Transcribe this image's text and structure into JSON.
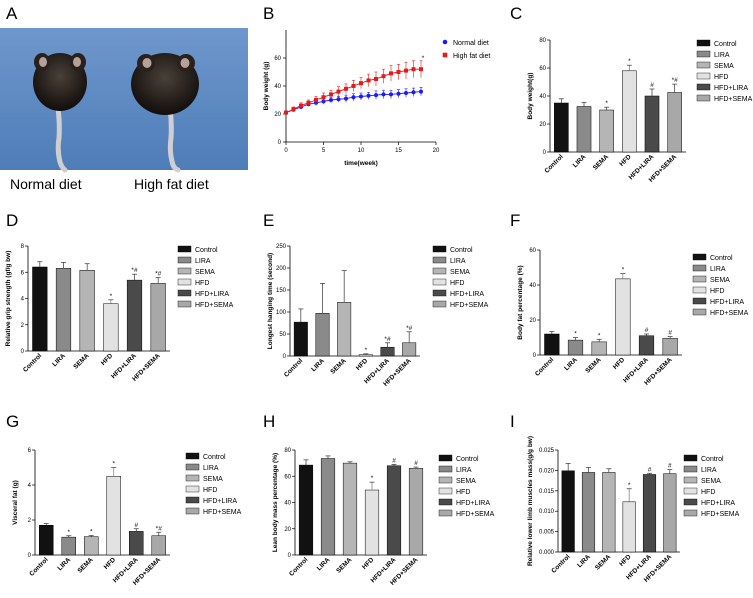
{
  "panel_letters": [
    "A",
    "B",
    "C",
    "D",
    "E",
    "F",
    "G",
    "H",
    "I"
  ],
  "photo": {
    "captions": [
      "Normal diet",
      "High fat diet"
    ]
  },
  "colors": {
    "black": "#111111",
    "lira": "#8a8a8a",
    "sema": "#b5b5b5",
    "hfd": "#e2e2e2",
    "hfd_lira": "#4a4a4a",
    "hfd_sema": "#a8a8a8",
    "normal": "#1a1aff",
    "highfat": "#e31b1b",
    "bg_blue": "#5b88c3"
  },
  "chart_data": [
    {
      "id": "B",
      "type": "line",
      "xlabel": "time(week)",
      "ylabel": "Body weight (g)",
      "xlim": [
        0,
        20
      ],
      "ylim": [
        0,
        80
      ],
      "xticks": [
        0,
        5,
        10,
        15,
        20
      ],
      "yticks": [
        0,
        20,
        40,
        60
      ],
      "x": [
        0,
        1,
        2,
        3,
        4,
        5,
        6,
        7,
        8,
        9,
        10,
        11,
        12,
        13,
        14,
        15,
        16,
        17,
        18
      ],
      "series": [
        {
          "name": "Normal diet",
          "color": "#1a1aff",
          "marker": "circle",
          "values": [
            21,
            23,
            25,
            27,
            28,
            29,
            30,
            30.5,
            31,
            32,
            32.5,
            33,
            33.5,
            34,
            34,
            34.5,
            35,
            35.5,
            36
          ],
          "errors": [
            1,
            1,
            1.5,
            1.5,
            2,
            2,
            2,
            2,
            2.5,
            2.5,
            2.5,
            2.5,
            3,
            3,
            3,
            3,
            3,
            3,
            3
          ]
        },
        {
          "name": "High fat diet",
          "color": "#e31b1b",
          "marker": "square",
          "values": [
            21,
            23.5,
            26,
            28,
            30,
            32,
            34,
            36,
            38,
            40,
            42,
            44,
            45,
            47,
            49,
            50,
            51,
            52,
            52
          ],
          "errors": [
            1,
            1.5,
            2,
            2,
            2.5,
            3,
            3,
            3.5,
            3.5,
            4,
            4,
            4.5,
            5,
            5,
            5.5,
            5.5,
            6,
            6,
            6
          ]
        }
      ],
      "annotations": [
        "*"
      ]
    },
    {
      "id": "C",
      "type": "bar",
      "ylabel": "Body weight(g)",
      "ylim": [
        0,
        80
      ],
      "yticks": [
        0,
        20,
        40,
        60,
        80
      ],
      "categories": [
        "Control",
        "LIRA",
        "SEMA",
        "HFD",
        "HFD+LIRA",
        "HFD+SEMA"
      ],
      "values": [
        35,
        32.5,
        30,
        58,
        40,
        42.5
      ],
      "errors": [
        3,
        3,
        2,
        4,
        5,
        6
      ],
      "annotations": [
        "",
        "",
        "*",
        "*",
        "#",
        "*#"
      ]
    },
    {
      "id": "D",
      "type": "bar",
      "ylabel": "Relative grip strength (gf/g bw)",
      "ylim": [
        0,
        8
      ],
      "yticks": [
        0,
        2,
        4,
        6,
        8
      ],
      "categories": [
        "Control",
        "LIRA",
        "SEMA",
        "HFD",
        "HFD+LIRA",
        "HFD+SEMA"
      ],
      "values": [
        6.4,
        6.3,
        6.15,
        3.6,
        5.4,
        5.15
      ],
      "errors": [
        0.4,
        0.45,
        0.5,
        0.3,
        0.45,
        0.45
      ],
      "annotations": [
        "",
        "",
        "",
        "*",
        "*#",
        "*#"
      ]
    },
    {
      "id": "E",
      "type": "bar",
      "ylabel": "Longest hanging time (second)",
      "ylim": [
        0,
        250
      ],
      "yticks": [
        0,
        50,
        100,
        150,
        200,
        250
      ],
      "categories": [
        "Control",
        "LIRA",
        "SEMA",
        "HFD",
        "HFD+LIRA",
        "HFD+SEMA"
      ],
      "values": [
        77,
        97,
        122,
        3,
        20,
        30
      ],
      "errors": [
        30,
        68,
        72,
        2,
        10,
        25
      ],
      "annotations": [
        "",
        "",
        "",
        "*",
        "*#",
        "*#"
      ]
    },
    {
      "id": "F",
      "type": "bar",
      "ylabel": "Body fat percentage (%)",
      "ylim": [
        0,
        60
      ],
      "yticks": [
        0,
        20,
        40,
        60
      ],
      "categories": [
        "Control",
        "LIRA",
        "SEMA",
        "HFD",
        "HFD+LIRA",
        "HFD+SEMA"
      ],
      "values": [
        12,
        8.5,
        7.5,
        43.5,
        11,
        9.5
      ],
      "errors": [
        1.5,
        1.5,
        1.5,
        3,
        1,
        1
      ],
      "annotations": [
        "",
        "*",
        "*",
        "*",
        "#",
        "#"
      ]
    },
    {
      "id": "G",
      "type": "bar",
      "ylabel": "Visceral fat (g)",
      "ylim": [
        0,
        6
      ],
      "yticks": [
        0,
        2,
        4,
        6
      ],
      "categories": [
        "Control",
        "LIRA",
        "SEMA",
        "HFD",
        "HFD+LIRA",
        "HFD+SEMA"
      ],
      "values": [
        1.7,
        1.02,
        1.05,
        4.5,
        1.35,
        1.1
      ],
      "errors": [
        0.1,
        0.08,
        0.06,
        0.5,
        0.15,
        0.2
      ],
      "annotations": [
        "",
        "*",
        "*",
        "*",
        "#",
        "*#"
      ]
    },
    {
      "id": "H",
      "type": "bar",
      "ylabel": "Lean body mass percentage (%)",
      "ylim": [
        0,
        80
      ],
      "yticks": [
        0,
        20,
        40,
        60,
        80
      ],
      "categories": [
        "Control",
        "LIRA",
        "SEMA",
        "HFD",
        "HFD+LIRA",
        "HFD+SEMA"
      ],
      "values": [
        68.5,
        73.5,
        70,
        49.5,
        68,
        66
      ],
      "errors": [
        4,
        2,
        1,
        6,
        1,
        1
      ],
      "annotations": [
        "",
        "",
        "",
        "*",
        "#",
        "#"
      ]
    },
    {
      "id": "I",
      "type": "bar",
      "ylabel": "Relative lower limb muscles mass(g/g bw)",
      "ylim": [
        0,
        0.025
      ],
      "yticks": [
        0.0,
        0.005,
        0.01,
        0.015,
        0.02,
        0.025
      ],
      "ytick_labels": [
        "0.000",
        "0.005",
        "0.010",
        "0.015",
        "0.020",
        "0.025"
      ],
      "categories": [
        "Control",
        "LIRA",
        "SEMA",
        "HFD",
        "HFD+LIRA",
        "HFD+SEMA"
      ],
      "values": [
        0.0199,
        0.0195,
        0.0195,
        0.0123,
        0.019,
        0.0192
      ],
      "errors": [
        0.0018,
        0.0012,
        0.0009,
        0.0032,
        0.0003,
        0.001
      ],
      "annotations": [
        "",
        "",
        "",
        "*",
        "#",
        "#"
      ]
    }
  ]
}
